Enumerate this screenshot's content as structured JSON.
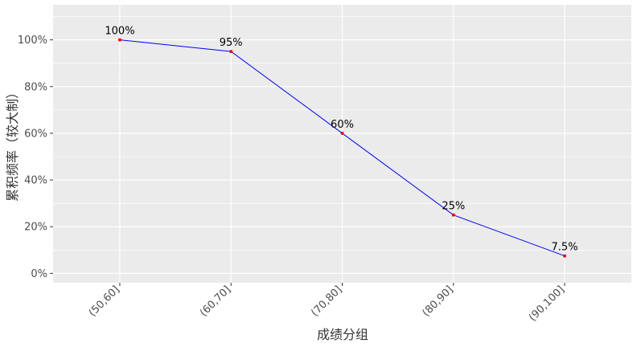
{
  "chart_data": {
    "type": "line",
    "categories": [
      "(50,60]",
      "(60,70]",
      "(70,80]",
      "(80,90]",
      "(90,100]"
    ],
    "values": [
      1.0,
      0.95,
      0.6,
      0.25,
      0.075
    ],
    "data_labels": [
      "100%",
      "95%",
      "60%",
      "25%",
      "7.5%"
    ],
    "xlabel": "成绩分组",
    "ylabel": "累积频率（较大制）",
    "ylim": [
      -0.04,
      1.15
    ],
    "yticks": [
      0,
      0.2,
      0.4,
      0.6,
      0.8,
      1.0
    ],
    "ytick_labels": [
      "0%",
      "20%",
      "40%",
      "60%",
      "80%",
      "100%"
    ],
    "grid": true,
    "line_color": "#0000ff",
    "point_color": "#ff0000",
    "panel_background": "#ebebeb",
    "grid_color": "#ffffff"
  }
}
